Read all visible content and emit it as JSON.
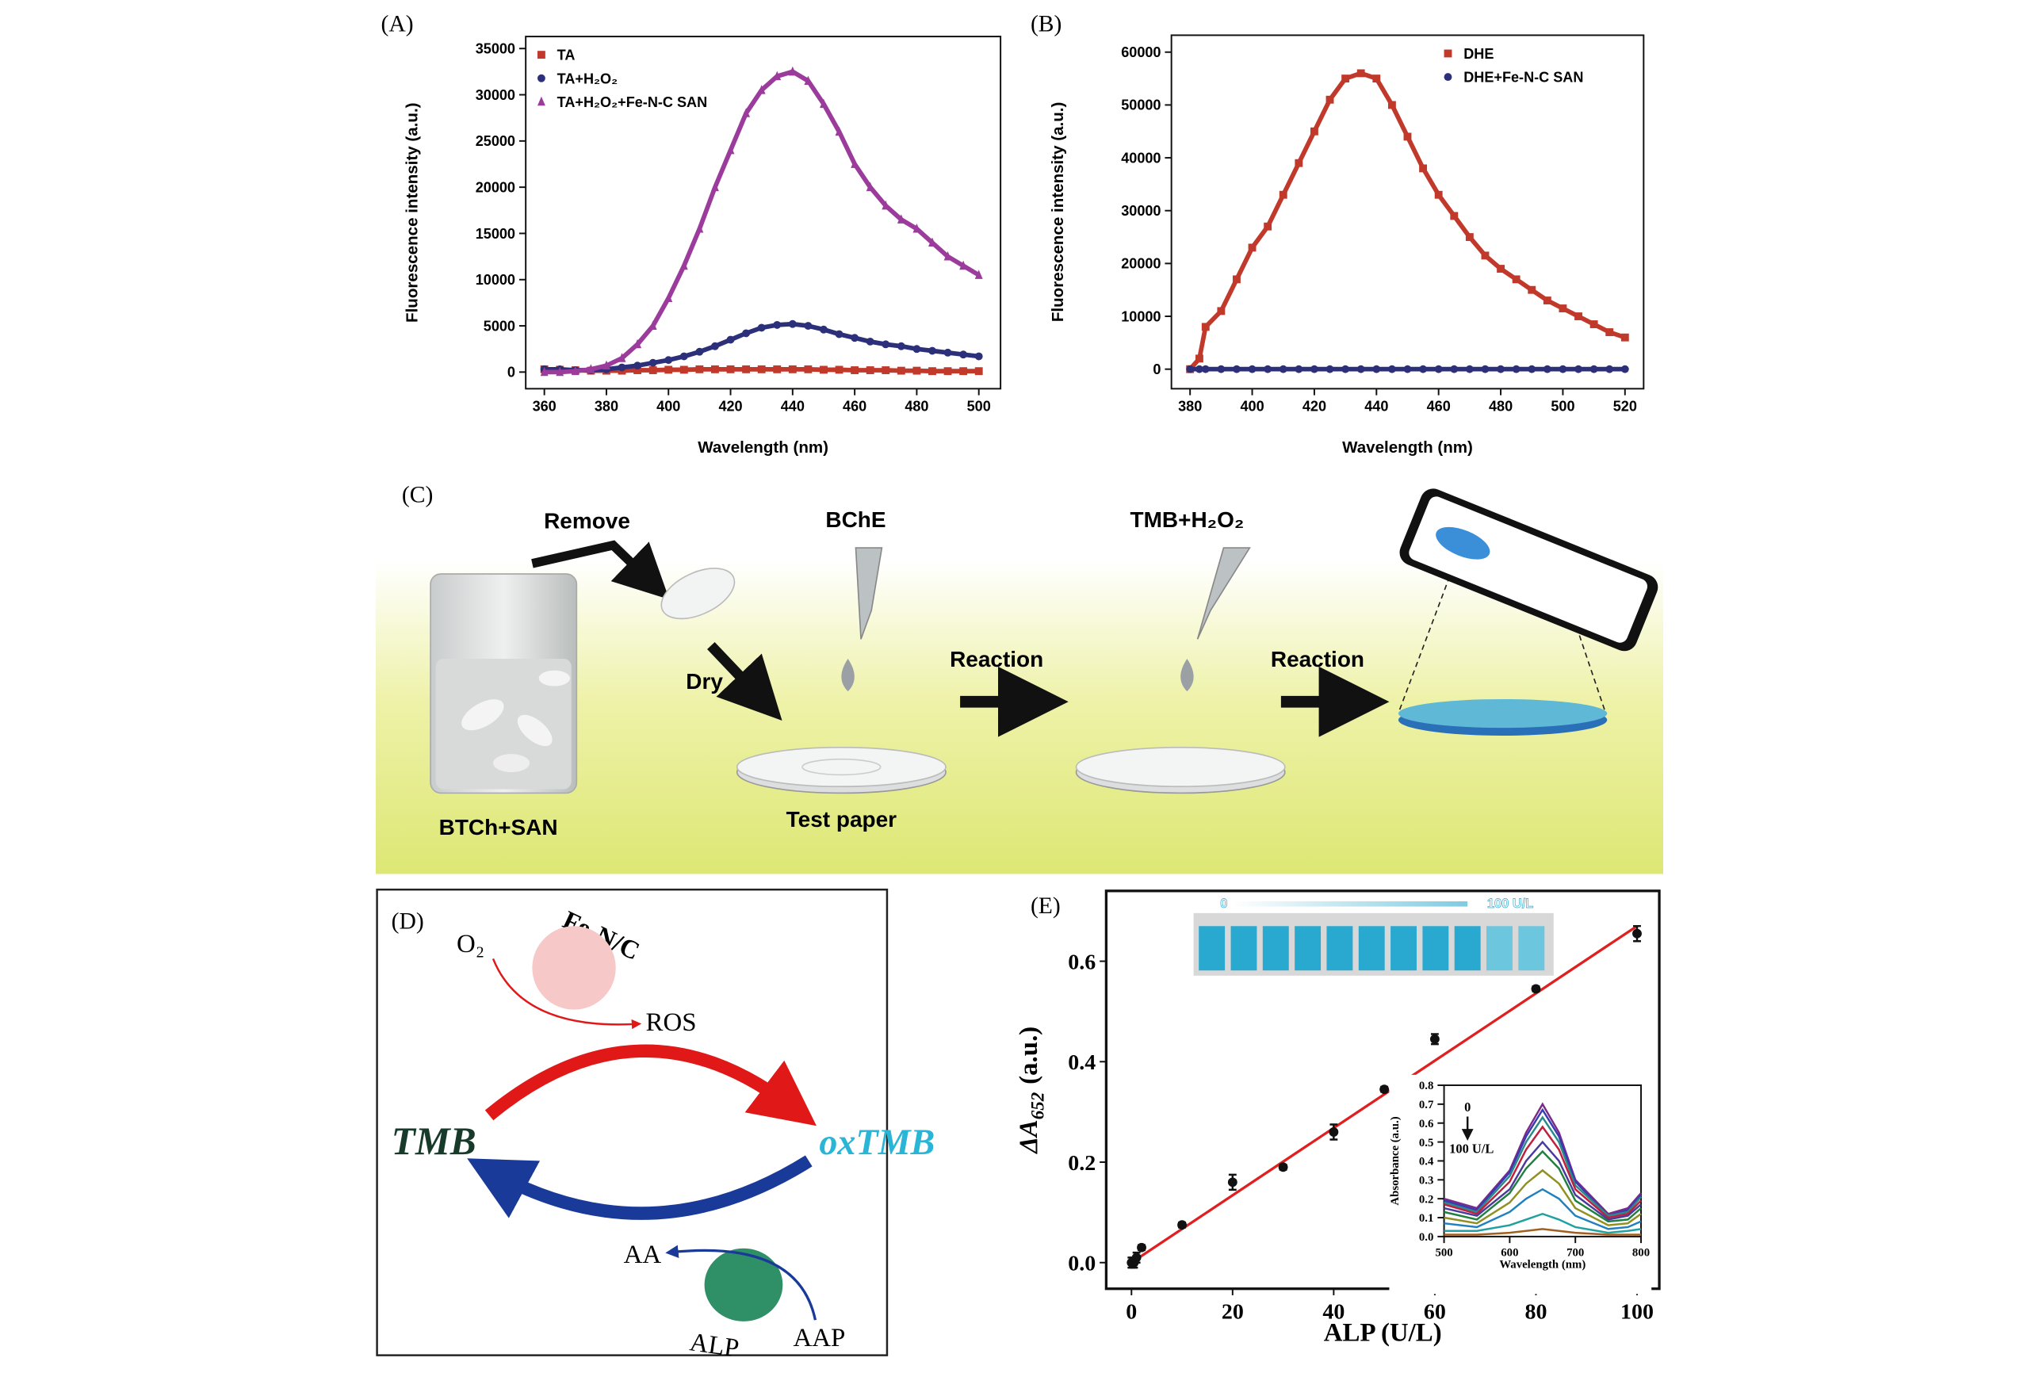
{
  "chart_data": [
    {
      "type": "scatter",
      "label": "(A)",
      "xlabel": "Wavelength (nm)",
      "ylabel": "Fluorescence intensity (a.u.)",
      "x": [
        360,
        365,
        370,
        375,
        380,
        385,
        390,
        395,
        400,
        405,
        410,
        415,
        420,
        425,
        430,
        435,
        440,
        445,
        450,
        455,
        460,
        465,
        470,
        475,
        480,
        485,
        490,
        495,
        500
      ],
      "xlim": [
        354,
        507
      ],
      "xticks": [
        360,
        380,
        400,
        420,
        440,
        460,
        480,
        500
      ],
      "ylim": [
        -1800,
        36300
      ],
      "yticks": [
        0,
        5000,
        10000,
        15000,
        20000,
        25000,
        30000,
        35000
      ],
      "legend": "upper left",
      "series": [
        {
          "name": "TA",
          "color": "#c0392b",
          "marker": "square",
          "values": [
            300,
            250,
            200,
            150,
            150,
            150,
            200,
            200,
            250,
            250,
            300,
            300,
            300,
            300,
            300,
            300,
            300,
            300,
            250,
            250,
            200,
            200,
            200,
            150,
            150,
            100,
            100,
            100,
            100
          ]
        },
        {
          "name": "TA+H₂O₂",
          "color": "#2c2f7a",
          "marker": "circle",
          "values": [
            300,
            300,
            200,
            200,
            300,
            500,
            700,
            1000,
            1300,
            1700,
            2200,
            2800,
            3500,
            4200,
            4800,
            5100,
            5200,
            5000,
            4600,
            4100,
            3700,
            3300,
            3000,
            2800,
            2500,
            2300,
            2100,
            1900,
            1700
          ]
        },
        {
          "name": "TA+H₂O₂+Fe-N-C SAN",
          "color": "#9b3b9b",
          "marker": "triangle",
          "values": [
            0,
            0,
            100,
            300,
            700,
            1500,
            3000,
            5000,
            8000,
            11500,
            15500,
            20000,
            24000,
            28000,
            30500,
            32000,
            32500,
            31500,
            29000,
            26000,
            22500,
            20000,
            18000,
            16500,
            15500,
            14000,
            12500,
            11500,
            10500
          ]
        }
      ]
    },
    {
      "type": "scatter",
      "label": "(B)",
      "xlabel": "Wavelength (nm)",
      "ylabel": "Fluorescence intensity (a.u.)",
      "x": [
        380,
        383,
        385,
        390,
        395,
        400,
        405,
        410,
        415,
        420,
        425,
        430,
        435,
        440,
        445,
        450,
        455,
        460,
        465,
        470,
        475,
        480,
        485,
        490,
        495,
        500,
        505,
        510,
        515,
        520
      ],
      "xlim": [
        374,
        526
      ],
      "xticks": [
        380,
        400,
        420,
        440,
        460,
        480,
        500,
        520
      ],
      "ylim": [
        -3700,
        63200
      ],
      "yticks": [
        0,
        10000,
        20000,
        30000,
        40000,
        50000,
        60000
      ],
      "legend": "upper right",
      "series": [
        {
          "name": "DHE",
          "color": "#c0392b",
          "marker": "square",
          "values": [
            0,
            2000,
            8000,
            11000,
            17000,
            23000,
            27000,
            33000,
            39000,
            45000,
            51000,
            55000,
            56000,
            55000,
            50000,
            44000,
            38000,
            33000,
            29000,
            25000,
            21500,
            19000,
            17000,
            15000,
            13000,
            11500,
            10000,
            8500,
            7000,
            6000
          ]
        },
        {
          "name": "DHE+Fe-N-C SAN",
          "color": "#2c2f7a",
          "marker": "circle",
          "values": [
            0,
            0,
            0,
            0,
            0,
            0,
            0,
            0,
            0,
            0,
            0,
            0,
            0,
            0,
            0,
            0,
            0,
            0,
            0,
            0,
            0,
            0,
            0,
            0,
            0,
            0,
            0,
            0,
            0,
            0
          ]
        }
      ]
    },
    {
      "type": "scatter",
      "label": "(E)",
      "xlabel": "ALP (U/L)",
      "ylabel": "ΔA",
      "ylabel_sub": "652",
      "ylabel_unit": "(a.u.)",
      "x": [
        0,
        0.5,
        1,
        2,
        10,
        20,
        30,
        40,
        50,
        60,
        80,
        100
      ],
      "xlim": [
        -5,
        104.4
      ],
      "xticks": [
        0,
        20,
        40,
        60,
        80,
        100
      ],
      "ylim": [
        -0.052,
        0.74
      ],
      "yticks": [
        {
          "value": 0,
          "label": "0.0"
        },
        0.2,
        0.4,
        0.6
      ],
      "series": [
        {
          "color": "#111111",
          "marker": "circle",
          "values": [
            0,
            0,
            0.01,
            0.03,
            0.075,
            0.16,
            0.19,
            0.26,
            0.345,
            0.445,
            0.545,
            0.655
          ],
          "errors": [
            0.01,
            0.01,
            0.01,
            0.005,
            0.005,
            0.015,
            0.005,
            0.015,
            0.005,
            0.01,
            0.005,
            0.015
          ]
        }
      ],
      "fit": {
        "color": "#e02020",
        "x": [
          0,
          100
        ],
        "values": [
          0,
          0.67
        ]
      },
      "strip_labels": [
        "0",
        "100 U/L"
      ]
    },
    {
      "type": "line",
      "xlabel": "Wavelength (nm)",
      "ylabel": "Absorbance (a.u.)",
      "x": [
        500,
        550,
        600,
        625,
        650,
        675,
        700,
        750,
        780,
        800
      ],
      "xlim": [
        500,
        800
      ],
      "xticks": [
        500,
        600,
        700,
        800
      ],
      "ylim": [
        0,
        0.8
      ],
      "yticks": [
        {
          "value": 0,
          "label": "0.0"
        },
        0.1,
        0.2,
        0.3,
        0.4,
        0.5,
        0.6,
        0.7,
        0.8
      ],
      "annotations": [
        "0",
        "100 U/L"
      ],
      "series": [
        {
          "color": "#7a2a8a",
          "values": [
            0.2,
            0.15,
            0.35,
            0.55,
            0.7,
            0.55,
            0.3,
            0.12,
            0.15,
            0.23
          ]
        },
        {
          "color": "#3a3ab0",
          "values": [
            0.19,
            0.14,
            0.34,
            0.53,
            0.67,
            0.53,
            0.29,
            0.11,
            0.14,
            0.22
          ]
        },
        {
          "color": "#2a8a8a",
          "values": [
            0.18,
            0.13,
            0.32,
            0.5,
            0.63,
            0.5,
            0.27,
            0.11,
            0.13,
            0.21
          ]
        },
        {
          "color": "#c02040",
          "values": [
            0.17,
            0.12,
            0.29,
            0.46,
            0.58,
            0.46,
            0.25,
            0.1,
            0.12,
            0.19
          ]
        },
        {
          "color": "#4a3a9a",
          "values": [
            0.15,
            0.11,
            0.25,
            0.4,
            0.5,
            0.4,
            0.22,
            0.09,
            0.11,
            0.17
          ]
        },
        {
          "color": "#208040",
          "values": [
            0.13,
            0.09,
            0.23,
            0.36,
            0.45,
            0.36,
            0.19,
            0.08,
            0.09,
            0.15
          ]
        },
        {
          "color": "#909020",
          "values": [
            0.1,
            0.07,
            0.18,
            0.28,
            0.35,
            0.28,
            0.15,
            0.06,
            0.07,
            0.12
          ]
        },
        {
          "color": "#2080c0",
          "values": [
            0.07,
            0.05,
            0.13,
            0.2,
            0.25,
            0.2,
            0.11,
            0.04,
            0.05,
            0.08
          ]
        },
        {
          "color": "#20a0a0",
          "values": [
            0.03,
            0.03,
            0.06,
            0.09,
            0.12,
            0.09,
            0.05,
            0.02,
            0.03,
            0.04
          ]
        },
        {
          "color": "#a06020",
          "values": [
            0.01,
            0.01,
            0.02,
            0.03,
            0.04,
            0.03,
            0.02,
            0.01,
            0.01,
            0.01
          ]
        }
      ]
    }
  ],
  "panel_c": {
    "label": "(C)",
    "remove": "Remove",
    "bche": "BChE",
    "tmb": "TMB+H₂O₂",
    "dry": "Dry",
    "reaction_1": "Reaction",
    "reaction_2": "Reaction",
    "beaker": "BTCh+SAN",
    "paper": "Test paper"
  },
  "panel_d": {
    "label": "(D)",
    "o2": "O₂",
    "catalyst": "Fe-N/C",
    "ros": "ROS",
    "tmb": "TMB",
    "oxtmb": "oxTMB",
    "aa": "AA",
    "alp": "ALP",
    "aap": "AAP"
  }
}
